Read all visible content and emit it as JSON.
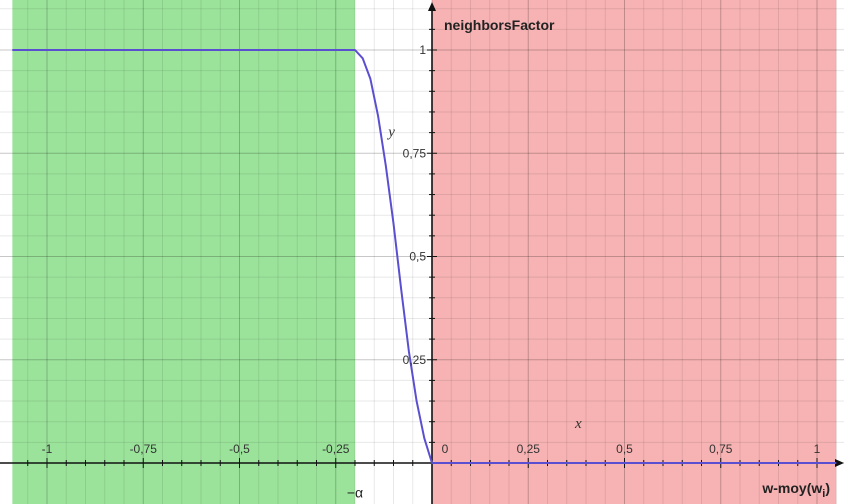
{
  "chart_data": {
    "type": "line",
    "title": "",
    "xlabel": {
      "base": "w-moy(w",
      "sub": "i",
      "close": ")"
    },
    "ylabel": "neighborsFactor",
    "xlim": [
      -1.09,
      1.05
    ],
    "ylim": [
      -0.03,
      1.1
    ],
    "x_ticks": [
      -1,
      -0.75,
      -0.5,
      -0.25,
      0,
      0.25,
      0.5,
      0.75,
      1
    ],
    "x_tick_labels": [
      "-1",
      "-0,75",
      "-0,5",
      "-0,25",
      "0",
      "0,25",
      "0,5",
      "0,75",
      "1"
    ],
    "y_ticks": [
      0.25,
      0.5,
      0.75,
      1
    ],
    "y_tick_labels": [
      "0,25",
      "0,5",
      "0,75",
      "1"
    ],
    "grid": true,
    "series": [
      {
        "color": "#5a4fd0",
        "x": [
          -1.09,
          -0.2,
          -0.18,
          -0.16,
          -0.14,
          -0.12,
          -0.1,
          -0.08,
          -0.06,
          -0.04,
          -0.02,
          0,
          1.05
        ],
        "y": [
          1,
          1,
          0.98,
          0.93,
          0.84,
          0.72,
          0.58,
          0.42,
          0.27,
          0.15,
          0.06,
          0,
          0
        ]
      }
    ],
    "regions": [
      {
        "x_from": -1.09,
        "x_to": -0.2,
        "color": "#9be39b"
      },
      {
        "x_from": 0,
        "x_to": 1.05,
        "color": "#f7b3b3"
      }
    ],
    "annotations": [
      {
        "text": "y",
        "x": -0.105,
        "y": 0.79
      },
      {
        "text": "x",
        "x": 0.38,
        "y": 0.085
      },
      {
        "text": "−α",
        "x": -0.2,
        "y": -0.04
      }
    ]
  }
}
